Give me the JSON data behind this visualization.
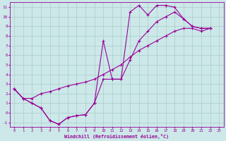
{
  "xlabel": "Windchill (Refroidissement éolien,°C)",
  "bg_color": "#cce8e8",
  "line_color": "#990099",
  "grid_color": "#aacccc",
  "xlim": [
    -0.5,
    23.5
  ],
  "ylim": [
    -1.5,
    11.5
  ],
  "xticks": [
    0,
    1,
    2,
    3,
    4,
    5,
    6,
    7,
    8,
    9,
    10,
    11,
    12,
    13,
    14,
    15,
    16,
    17,
    18,
    19,
    20,
    21,
    22,
    23
  ],
  "yticks": [
    -1,
    0,
    1,
    2,
    3,
    4,
    5,
    6,
    7,
    8,
    9,
    10,
    11
  ],
  "series": [
    {
      "x": [
        0,
        1,
        2,
        3,
        4,
        5,
        6,
        7,
        8,
        9,
        10,
        11,
        12,
        13,
        14,
        15,
        16,
        17,
        18,
        19,
        20,
        21,
        22
      ],
      "y": [
        2.5,
        1.5,
        1.0,
        0.5,
        -0.8,
        -1.2,
        -0.5,
        -0.3,
        -0.2,
        1.0,
        7.5,
        3.5,
        3.5,
        10.5,
        11.2,
        10.2,
        11.2,
        11.2,
        11.0,
        9.8,
        9.0,
        8.8,
        8.8
      ]
    },
    {
      "x": [
        0,
        1,
        2,
        3,
        4,
        5,
        6,
        7,
        8,
        9,
        10,
        11,
        12,
        13,
        14,
        15,
        16,
        17,
        18,
        19,
        20,
        21,
        22
      ],
      "y": [
        2.5,
        1.5,
        1.0,
        0.5,
        -0.8,
        -1.2,
        -0.5,
        -0.3,
        -0.2,
        1.0,
        3.5,
        3.5,
        3.5,
        5.5,
        7.5,
        8.5,
        9.5,
        10.0,
        10.5,
        9.8,
        9.0,
        8.8,
        8.8
      ]
    },
    {
      "x": [
        0,
        1,
        2,
        3,
        4,
        5,
        6,
        7,
        8,
        9,
        10,
        11,
        12,
        13,
        14,
        15,
        16,
        17,
        18,
        19,
        20,
        21,
        22
      ],
      "y": [
        2.5,
        1.5,
        1.5,
        2.0,
        2.2,
        2.5,
        2.8,
        3.0,
        3.2,
        3.5,
        4.0,
        4.5,
        5.0,
        5.8,
        6.5,
        7.0,
        7.5,
        8.0,
        8.5,
        8.8,
        8.8,
        8.5,
        8.8
      ]
    }
  ]
}
